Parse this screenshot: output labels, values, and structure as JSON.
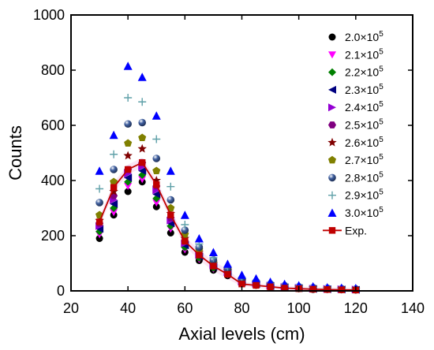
{
  "chart_data": {
    "type": "scatter",
    "xlabel": "Axial levels (cm)",
    "ylabel": "Counts",
    "xlim": [
      20,
      140
    ],
    "ylim": [
      0,
      1000
    ],
    "xticks": [
      "20",
      "40",
      "60",
      "80",
      "100",
      "120",
      "140"
    ],
    "yticks": [
      "0",
      "200",
      "400",
      "600",
      "800",
      "1000"
    ],
    "legend_position": "top-right",
    "grid": false,
    "x": [
      30,
      35,
      40,
      45,
      50,
      55,
      60,
      65,
      70,
      75,
      80,
      85,
      90,
      95,
      100,
      105,
      110,
      115,
      120
    ],
    "series": [
      {
        "name": "2.0×10^5",
        "marker": "circle",
        "color": "#000000",
        "values": [
          190,
          275,
          360,
          395,
          305,
          210,
          140,
          110,
          75,
          55,
          25,
          20,
          15,
          10,
          8,
          5,
          5,
          4,
          3
        ]
      },
      {
        "name": "2.1×10^5",
        "marker": "triangle-down",
        "color": "#ff00ff",
        "values": [
          205,
          285,
          380,
          405,
          320,
          225,
          150,
          115,
          80,
          60,
          28,
          22,
          16,
          11,
          9,
          6,
          5,
          4,
          3
        ]
      },
      {
        "name": "2.2×10^5",
        "marker": "diamond",
        "color": "#008000",
        "values": [
          215,
          300,
          395,
          420,
          335,
          235,
          158,
          120,
          84,
          62,
          30,
          24,
          17,
          12,
          9,
          7,
          6,
          5,
          4
        ]
      },
      {
        "name": "2.3×10^5",
        "marker": "triangle-left",
        "color": "#000080",
        "values": [
          225,
          315,
          410,
          435,
          350,
          245,
          165,
          125,
          88,
          65,
          32,
          25,
          18,
          13,
          10,
          7,
          6,
          5,
          4
        ]
      },
      {
        "name": "2.4×10^5",
        "marker": "triangle-right",
        "color": "#9400d3",
        "values": [
          235,
          330,
          425,
          450,
          365,
          255,
          172,
          130,
          92,
          68,
          34,
          26,
          19,
          14,
          11,
          8,
          7,
          6,
          5
        ]
      },
      {
        "name": "2.5×10^5",
        "marker": "hexagon",
        "color": "#800080",
        "values": [
          245,
          345,
          440,
          465,
          380,
          265,
          180,
          135,
          96,
          71,
          36,
          28,
          20,
          15,
          12,
          9,
          7,
          6,
          5
        ]
      },
      {
        "name": "2.6×10^5",
        "marker": "star",
        "color": "#800000",
        "values": [
          255,
          360,
          490,
          515,
          400,
          280,
          190,
          140,
          100,
          74,
          38,
          29,
          21,
          16,
          13,
          10,
          8,
          7,
          6
        ]
      },
      {
        "name": "2.7×10^5",
        "marker": "pentagon",
        "color": "#808000",
        "values": [
          275,
          395,
          535,
          555,
          435,
          300,
          205,
          148,
          105,
          78,
          40,
          31,
          23,
          17,
          14,
          11,
          9,
          7,
          6
        ]
      },
      {
        "name": "2.8×10^5",
        "marker": "sphere",
        "color": "#4060a0",
        "values": [
          320,
          440,
          605,
          610,
          480,
          330,
          220,
          158,
          112,
          82,
          44,
          34,
          25,
          19,
          15,
          12,
          10,
          8,
          7
        ]
      },
      {
        "name": "2.9×10^5",
        "marker": "plus",
        "color": "#5fa0a8",
        "values": [
          370,
          495,
          700,
          685,
          550,
          378,
          240,
          170,
          120,
          88,
          48,
          37,
          27,
          21,
          17,
          13,
          11,
          9,
          8
        ]
      },
      {
        "name": "3.0×10^5",
        "marker": "triangle-up",
        "color": "#0000ff",
        "values": [
          435,
          565,
          815,
          775,
          635,
          435,
          275,
          190,
          140,
          98,
          58,
          45,
          33,
          25,
          20,
          16,
          13,
          11,
          10
        ]
      },
      {
        "name": "Exp.",
        "marker": "square-line",
        "color": "#c00000",
        "values": [
          250,
          375,
          440,
          465,
          385,
          275,
          180,
          130,
          90,
          60,
          25,
          20,
          15,
          10,
          8,
          6,
          5,
          4,
          3
        ]
      }
    ]
  }
}
